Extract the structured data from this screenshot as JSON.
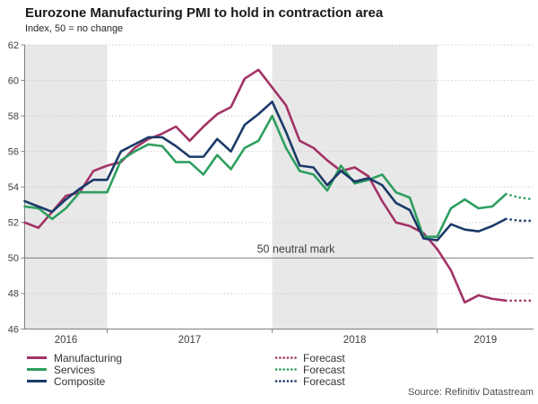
{
  "header": {
    "title": "Eurozone Manufacturing PMI to hold in contraction area",
    "subtitle": "Index, 50 = no change"
  },
  "chart_data": {
    "type": "line",
    "months": [
      "2016-07",
      "2016-08",
      "2016-09",
      "2016-10",
      "2016-11",
      "2016-12",
      "2017-01",
      "2017-02",
      "2017-03",
      "2017-04",
      "2017-05",
      "2017-06",
      "2017-07",
      "2017-08",
      "2017-09",
      "2017-10",
      "2017-11",
      "2017-12",
      "2018-01",
      "2018-02",
      "2018-03",
      "2018-04",
      "2018-05",
      "2018-06",
      "2018-07",
      "2018-08",
      "2018-09",
      "2018-10",
      "2018-11",
      "2018-12",
      "2019-01",
      "2019-02",
      "2019-03",
      "2019-04",
      "2019-05",
      "2019-06"
    ],
    "forecast_months": [
      "2019-07",
      "2019-08"
    ],
    "ylim": [
      46,
      62
    ],
    "y_ticks": [
      46,
      48,
      50,
      52,
      54,
      56,
      58,
      60,
      62
    ],
    "year_ticks": [
      "2016",
      "2017",
      "2018",
      "2019"
    ],
    "shaded_years": [
      "2016",
      "2018"
    ],
    "neutral_line": {
      "value": 50,
      "label": "50 neutral mark"
    },
    "grid": "dotted-horizontal",
    "legend_position": "bottom",
    "series": [
      {
        "name": "Manufacturing",
        "color": "#a23366",
        "values": [
          52.0,
          51.7,
          52.6,
          53.5,
          53.7,
          54.9,
          55.2,
          55.4,
          56.2,
          56.7,
          57.0,
          57.4,
          56.6,
          57.4,
          58.1,
          58.5,
          60.1,
          60.6,
          59.6,
          58.6,
          56.6,
          56.2,
          55.5,
          54.9,
          55.1,
          54.6,
          53.2,
          52.0,
          51.8,
          51.4,
          50.5,
          49.3,
          47.5,
          47.9,
          47.7,
          47.6
        ],
        "forecast": [
          47.6,
          47.6
        ]
      },
      {
        "name": "Services",
        "color": "#2e9e60",
        "values": [
          52.9,
          52.8,
          52.2,
          52.8,
          53.7,
          53.7,
          53.7,
          55.5,
          56.0,
          56.4,
          56.3,
          55.4,
          55.4,
          54.7,
          55.8,
          55.0,
          56.2,
          56.6,
          58.0,
          56.2,
          54.9,
          54.7,
          53.8,
          55.2,
          54.2,
          54.4,
          54.7,
          53.7,
          53.4,
          51.2,
          51.2,
          52.8,
          53.3,
          52.8,
          52.9,
          53.6
        ],
        "forecast": [
          53.4,
          53.3
        ]
      },
      {
        "name": "Composite",
        "color": "#1a3a68",
        "values": [
          53.2,
          52.9,
          52.6,
          53.3,
          53.9,
          54.4,
          54.4,
          56.0,
          56.4,
          56.8,
          56.8,
          56.3,
          55.7,
          55.7,
          56.7,
          56.0,
          57.5,
          58.1,
          58.8,
          57.1,
          55.2,
          55.1,
          54.1,
          54.9,
          54.3,
          54.5,
          54.1,
          53.1,
          52.7,
          51.1,
          51.0,
          51.9,
          51.6,
          51.5,
          51.8,
          52.2
        ],
        "forecast": [
          52.1,
          52.1
        ]
      }
    ]
  },
  "legend": {
    "forecast_label": "Forecast"
  },
  "source": "Source: Refinitiv Datastream",
  "colors": {
    "band": "#e8e8e8",
    "gridline": "#c6c6c6",
    "axis": "#7f7f7f",
    "tick_text": "#404040"
  }
}
